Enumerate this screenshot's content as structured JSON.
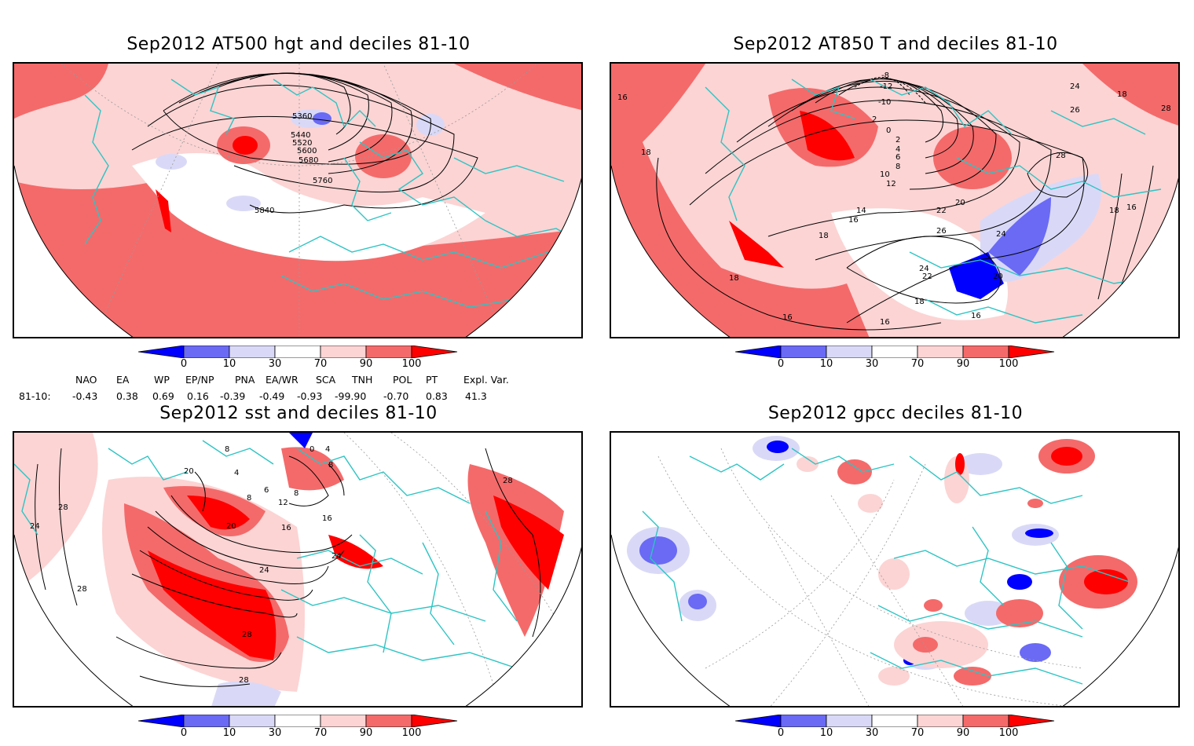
{
  "panels": [
    {
      "id": "hgt500",
      "title": "Sep2012 AT500 hgt and deciles 81-10",
      "contour_labels": [
        "5360",
        "5440",
        "5520",
        "5600",
        "5680",
        "5760",
        "5840"
      ]
    },
    {
      "id": "t850",
      "title": "Sep2012 AT850 T and deciles 81-10",
      "contour_labels": [
        "-8",
        "-12",
        "-10",
        "2",
        "0",
        "2",
        "4",
        "6",
        "8",
        "10",
        "12",
        "14",
        "16",
        "18",
        "18",
        "18",
        "20",
        "22",
        "24",
        "26",
        "28",
        "24",
        "22",
        "20",
        "18",
        "16",
        "16",
        "16",
        "16",
        "16",
        "18",
        "18",
        "24",
        "26",
        "28"
      ]
    },
    {
      "id": "sst",
      "title": "Sep2012 sst and deciles 81-10",
      "contour_labels": [
        "28",
        "24",
        "28",
        "20",
        "8",
        "4",
        "6",
        "8",
        "8",
        "16",
        "16",
        "12",
        "20",
        "24",
        "24",
        "28",
        "28",
        "0",
        "4",
        "8",
        "28"
      ]
    },
    {
      "id": "gpcc",
      "title": "Sep2012 gpcc deciles 81-10",
      "contour_labels": []
    }
  ],
  "colorbar": {
    "tick_labels": [
      "0",
      "10",
      "30",
      "70",
      "90",
      "100"
    ],
    "colors": {
      "below10": "#0000ff",
      "b10_30": "#6a6af5",
      "b30_70": "#d9d9f7",
      "neutral": "#ffffff",
      "a70_90": "#fcd4d4",
      "a90_100": "#f46a6a",
      "above100": "#ff0000"
    }
  },
  "indices": {
    "row_label": "81-10:",
    "headers": [
      "NAO",
      "EA",
      "WP",
      "EP/NP",
      "PNA",
      "EA/WR",
      "SCA",
      "TNH",
      "POL",
      "PT",
      "Expl. Var."
    ],
    "values": [
      "-0.43",
      "0.38",
      "0.69",
      "0.16",
      "-0.39",
      "-0.49",
      "-0.93",
      "-99.90",
      "-0.70",
      "0.83",
      "41.3"
    ]
  },
  "colors": {
    "coast": "#2ec4c4",
    "frame": "#000000"
  }
}
